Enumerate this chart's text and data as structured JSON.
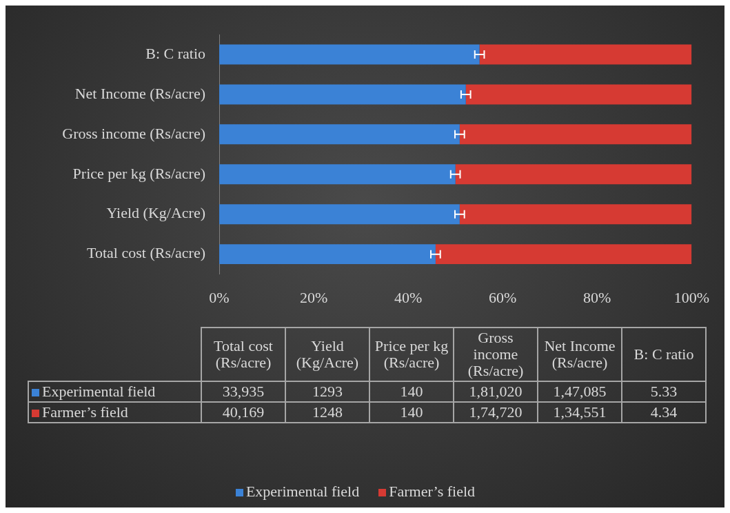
{
  "chart_data": {
    "type": "bar",
    "orientation": "horizontal",
    "stacked": true,
    "categories": [
      "B: C ratio",
      "Net Income (Rs/acre)",
      "Gross income (Rs/acre)",
      "Price per kg (Rs/acre)",
      "Yield (Kg/Acre)",
      "Total cost (Rs/acre)"
    ],
    "series": [
      {
        "name": "Experimental field",
        "color": "#3b82d6",
        "values": [
          55.1,
          52.2,
          50.9,
          50,
          50.9,
          45.8
        ],
        "errors": [
          1,
          1,
          1,
          1,
          1,
          1
        ]
      },
      {
        "name": "Farmer’s field",
        "color": "#d63a33",
        "values": [
          44.9,
          47.8,
          49.1,
          50,
          49.1,
          54.2
        ]
      }
    ],
    "annotations": [
      "33,935",
      "1293",
      "140",
      "1,81,020",
      "1,47,085",
      "5.33",
      "40,169",
      "1248",
      "140",
      "1,74,720",
      "1,34,551",
      "4.34"
    ],
    "xlim": [
      0,
      100
    ],
    "xticks": [
      {
        "value": 0,
        "label": "0%"
      },
      {
        "value": 20,
        "label": "20%"
      },
      {
        "value": 40,
        "label": "40%"
      },
      {
        "value": 60,
        "label": "60%"
      },
      {
        "value": 80,
        "label": "80%"
      },
      {
        "value": 100,
        "label": "100%"
      }
    ],
    "grid": false,
    "legend": "bottom"
  }
}
